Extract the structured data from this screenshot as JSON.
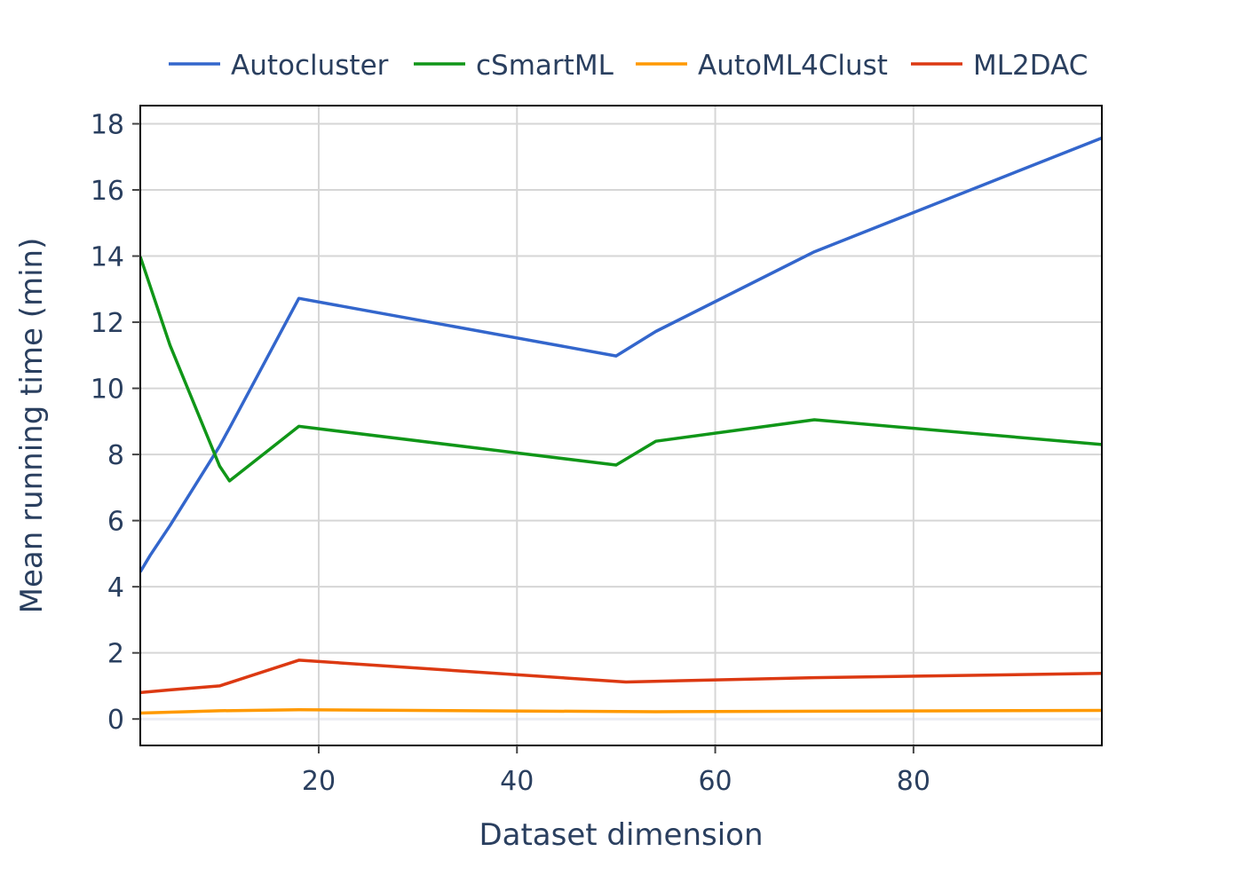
{
  "chart_data": {
    "type": "line",
    "title": "",
    "xlabel": "Dataset dimension",
    "ylabel": "Mean running time (min)",
    "xlim": [
      2,
      99
    ],
    "ylim": [
      -0.8,
      18.55
    ],
    "xticks": [
      20,
      40,
      60,
      80
    ],
    "yticks": [
      0,
      2,
      4,
      6,
      8,
      10,
      12,
      14,
      16,
      18
    ],
    "grid": true,
    "legend_position": "top-center",
    "series": [
      {
        "name": "Autocluster",
        "color": "#3366cc",
        "x": [
          2,
          3,
          5,
          10,
          11,
          18,
          50,
          54,
          70,
          99
        ],
        "y": [
          4.45,
          4.95,
          5.85,
          8.25,
          8.8,
          12.72,
          10.98,
          11.72,
          14.13,
          17.57
        ]
      },
      {
        "name": "cSmartML",
        "color": "#109618",
        "x": [
          2,
          5,
          10,
          11,
          18,
          50,
          54,
          70,
          99
        ],
        "y": [
          13.98,
          11.3,
          7.65,
          7.2,
          8.85,
          7.68,
          8.4,
          9.05,
          8.3
        ]
      },
      {
        "name": "AutoML4Clust",
        "color": "#ff9900",
        "x": [
          2,
          10,
          18,
          54,
          99
        ],
        "y": [
          0.18,
          0.25,
          0.28,
          0.22,
          0.26
        ]
      },
      {
        "name": "ML2DAC",
        "color": "#dc3912",
        "x": [
          2,
          5,
          10,
          18,
          51,
          70,
          99
        ],
        "y": [
          0.8,
          0.88,
          1.0,
          1.78,
          1.12,
          1.25,
          1.38
        ]
      }
    ]
  }
}
